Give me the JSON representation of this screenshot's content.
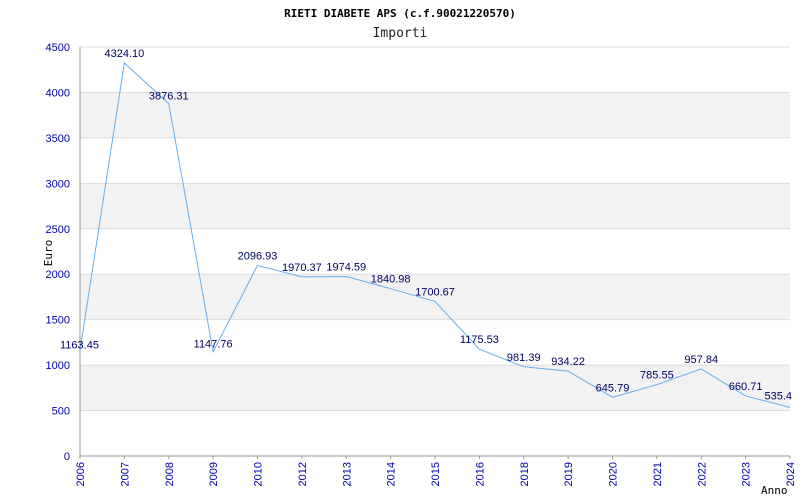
{
  "chart_data": {
    "type": "line",
    "title": "RIETI DIABETE APS (c.f.90021220570)",
    "subtitle": "Importi",
    "xlabel": "Anno",
    "ylabel": "Euro",
    "categories": [
      "2006",
      "2007",
      "2008",
      "2009",
      "2010",
      "2012",
      "2013",
      "2014",
      "2015",
      "2016",
      "2018",
      "2019",
      "2020",
      "2021",
      "2022",
      "2023",
      "2024"
    ],
    "series": [
      {
        "name": "Importi",
        "values": [
          1163.45,
          4324.1,
          3876.31,
          1147.76,
          2096.93,
          1970.37,
          1974.59,
          1840.98,
          1700.67,
          1175.53,
          981.39,
          934.22,
          645.79,
          785.55,
          957.84,
          660.71,
          535.4
        ],
        "labels": [
          "1163.45",
          "4324.10",
          "3876.31",
          "1147.76",
          "2096.93",
          "1970.37",
          "1974.59",
          "1840.98",
          "1700.67",
          "1175.53",
          "981.39",
          "934.22",
          "645.79",
          "785.55",
          "957.84",
          "660.71",
          "535.4"
        ]
      }
    ],
    "ylim": [
      0,
      4500
    ],
    "yticks": [
      "0",
      "500",
      "1000",
      "1500",
      "2000",
      "2500",
      "3000",
      "3500",
      "4000",
      "4500"
    ],
    "grid": true,
    "colors": {
      "line": "#6aaee8",
      "band": "#f2f2f2",
      "grid": "#dddddd",
      "axis": "#999999",
      "tick": "#0000aa"
    }
  }
}
